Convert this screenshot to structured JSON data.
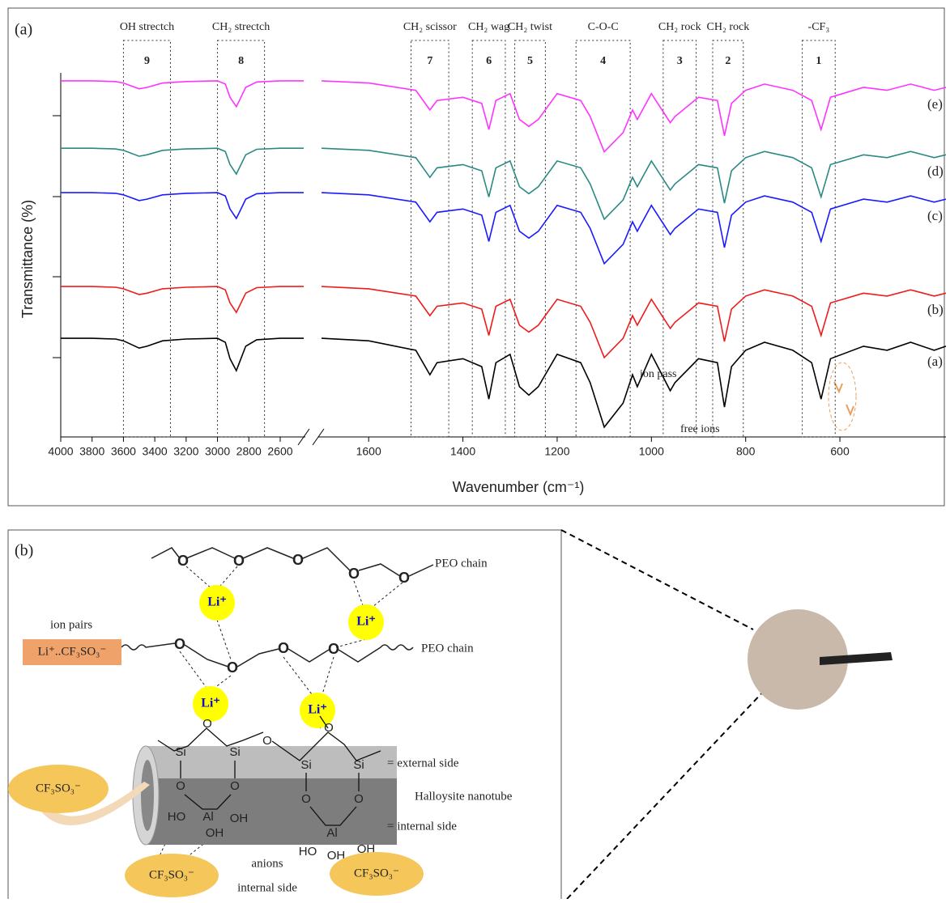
{
  "chart_data": {
    "type": "line",
    "panel_label": "(a)",
    "y_label": "Transmittance (%)",
    "x_label": "Wavenumber (cm⁻¹)",
    "xlim": [
      [
        4000,
        2450
      ],
      [
        1700,
        375
      ]
    ],
    "xticks": [
      [
        4000,
        3800,
        3600,
        3400,
        3200,
        3000,
        2800,
        2600
      ],
      [
        1600,
        1400,
        1200,
        1000,
        800,
        600
      ]
    ],
    "ylim": [
      0,
      100
    ],
    "x": [
      4000,
      3800,
      3650,
      3600,
      3500,
      3450,
      3350,
      3200,
      3000,
      2950,
      2920,
      2880,
      2860,
      2820,
      2750,
      2600,
      2450,
      2000,
      1700,
      1600,
      1500,
      1470,
      1455,
      1400,
      1360,
      1345,
      1330,
      1300,
      1280,
      1260,
      1240,
      1200,
      1150,
      1130,
      1100,
      1060,
      1040,
      1030,
      1000,
      960,
      950,
      900,
      860,
      845,
      830,
      800,
      760,
      700,
      660,
      640,
      620,
      550,
      500,
      450,
      400,
      375
    ],
    "series": [
      {
        "name": "(a)",
        "color": "#000000",
        "values": [
          27.1,
          27.1,
          26.9,
          26.4,
          24.4,
          24.9,
          26.4,
          26.9,
          27.1,
          26.0,
          21.5,
          18.2,
          20.4,
          24.9,
          26.7,
          27.1,
          27.1,
          null,
          27.1,
          26.4,
          23.8,
          17.1,
          20.4,
          21.5,
          19.3,
          10.4,
          20.4,
          22.7,
          13.8,
          11.5,
          13.8,
          22.7,
          20.4,
          14.9,
          2.7,
          9.3,
          17.1,
          13.8,
          22.7,
          12.7,
          14.9,
          21.5,
          20.4,
          8.2,
          19.3,
          23.8,
          26.0,
          23.8,
          20.4,
          10.4,
          21.5,
          24.9,
          23.8,
          26.0,
          23.8,
          24.9
        ]
      },
      {
        "name": "(b)",
        "color": "#ee1c1c",
        "values": [
          41.3,
          41.3,
          41.1,
          40.7,
          39.1,
          39.5,
          40.7,
          41.1,
          41.3,
          40.4,
          36.8,
          34.2,
          35.9,
          39.5,
          41.0,
          41.3,
          41.3,
          null,
          41.3,
          40.7,
          38.7,
          33.3,
          35.9,
          36.8,
          35.1,
          27.9,
          35.9,
          37.8,
          30.7,
          28.8,
          30.7,
          37.8,
          35.9,
          31.5,
          21.8,
          27.1,
          33.3,
          30.7,
          37.8,
          29.8,
          31.5,
          36.8,
          35.9,
          26.2,
          35.1,
          38.7,
          40.4,
          38.7,
          35.9,
          27.9,
          36.8,
          39.5,
          38.7,
          40.4,
          38.7,
          39.5
        ]
      },
      {
        "name": "(c)",
        "color": "#1a1aff",
        "values": [
          67.1,
          67.1,
          66.9,
          66.5,
          64.9,
          65.3,
          66.5,
          66.9,
          67.1,
          66.2,
          62.6,
          60.0,
          61.7,
          65.3,
          66.8,
          67.1,
          67.1,
          null,
          67.1,
          66.5,
          64.5,
          59.1,
          61.7,
          62.6,
          60.9,
          53.7,
          61.7,
          63.6,
          56.5,
          54.6,
          56.5,
          63.6,
          61.7,
          57.3,
          47.6,
          52.9,
          59.1,
          56.5,
          63.6,
          55.6,
          57.3,
          62.6,
          61.7,
          52.0,
          60.9,
          64.5,
          66.2,
          64.5,
          61.7,
          53.7,
          62.6,
          65.3,
          64.5,
          66.2,
          64.5,
          65.3
        ]
      },
      {
        "name": "(d)",
        "color": "#2a8a83",
        "values": [
          79.3,
          79.3,
          79.1,
          78.7,
          77.1,
          77.5,
          78.7,
          79.1,
          79.3,
          78.4,
          74.8,
          72.2,
          73.9,
          77.5,
          79.0,
          79.3,
          79.3,
          null,
          79.3,
          78.7,
          76.7,
          71.3,
          73.9,
          74.8,
          73.1,
          65.9,
          73.9,
          75.8,
          68.7,
          66.8,
          68.7,
          75.8,
          73.9,
          69.5,
          59.8,
          65.1,
          71.3,
          68.7,
          75.8,
          67.8,
          69.5,
          74.8,
          73.9,
          64.2,
          73.1,
          76.7,
          78.4,
          76.7,
          73.9,
          65.9,
          74.8,
          77.5,
          76.7,
          78.4,
          76.7,
          77.5
        ]
      },
      {
        "name": "(e)",
        "color": "#ff33ff",
        "values": [
          97.8,
          97.8,
          97.6,
          97.2,
          95.6,
          96.0,
          97.2,
          97.6,
          97.8,
          96.9,
          93.3,
          90.7,
          92.4,
          96.0,
          97.5,
          97.8,
          97.8,
          null,
          97.8,
          97.2,
          95.2,
          89.8,
          92.4,
          93.3,
          91.6,
          84.4,
          92.4,
          94.3,
          87.2,
          85.3,
          87.2,
          94.3,
          92.4,
          88.0,
          78.3,
          83.6,
          89.8,
          87.2,
          94.3,
          86.3,
          88.0,
          93.3,
          92.4,
          82.7,
          91.6,
          95.2,
          96.9,
          95.2,
          92.4,
          84.4,
          93.3,
          96.0,
          95.2,
          96.9,
          95.2,
          96.0
        ]
      }
    ],
    "bands": [
      {
        "label": "OH strectch",
        "number": 9,
        "range": [
          3600,
          3300
        ]
      },
      {
        "label": "CH₂ strectch",
        "number": 8,
        "range": [
          3000,
          2700
        ]
      },
      {
        "label": "CH₂ scissor",
        "number": 7,
        "range": [
          1510,
          1430
        ]
      },
      {
        "label": "CH₂ wag",
        "number": 6,
        "range": [
          1380,
          1310
        ]
      },
      {
        "label": "CH₂ twist",
        "number": 5,
        "range": [
          1290,
          1225
        ]
      },
      {
        "label": "C-O-C",
        "number": 4,
        "range": [
          1160,
          1045
        ]
      },
      {
        "label": "CH₂ rock",
        "number": 3,
        "range": [
          975,
          905
        ]
      },
      {
        "label": "CH₂ rock",
        "number": 2,
        "range": [
          870,
          805
        ]
      },
      {
        "label": "-CF₃",
        "number": 1,
        "range": [
          680,
          610
        ]
      }
    ],
    "annotations": [
      "ion pass",
      "free ions"
    ]
  },
  "diagram": {
    "panel_label": "(b)",
    "chain_label_top": "PEO chain",
    "chain_label_mid": "PEO chain",
    "li": "Li⁺",
    "oxygen": "O",
    "ion_pairs": "ion pairs",
    "ion_pair_formula": "Li⁺..CF₃SO₃⁻",
    "anion": "CF₃SO₃⁻",
    "si": "Si",
    "al": "Al",
    "ho": "HO",
    "oh": "OH",
    "external": "= external side",
    "nanotube": "Halloysite nanotube",
    "internal": "= internal side",
    "anions": "anions",
    "internal_side": "internal side"
  }
}
